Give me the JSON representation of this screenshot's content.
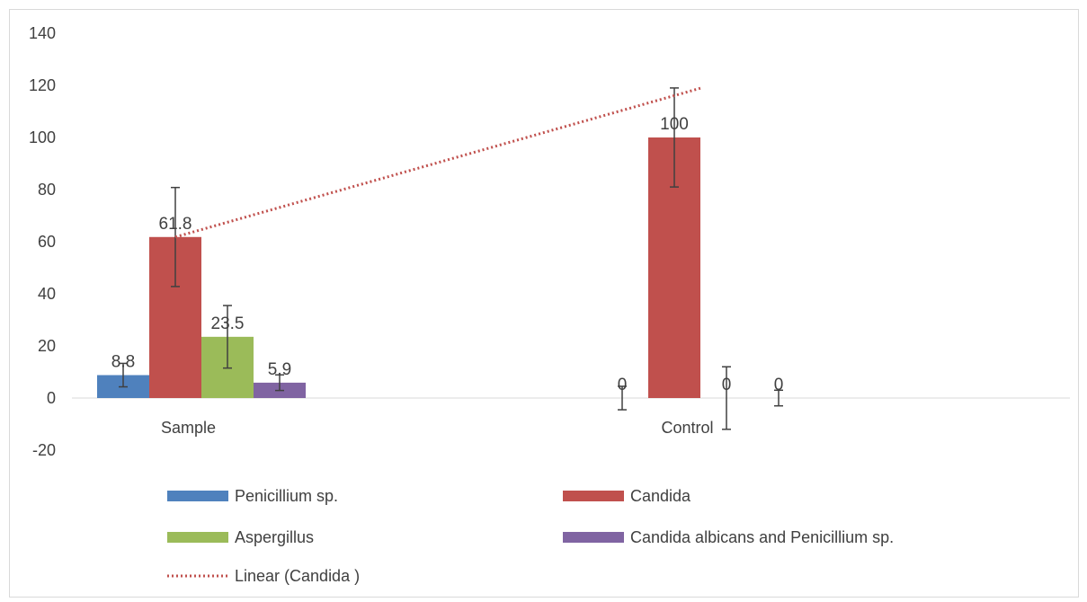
{
  "chart_data": {
    "type": "bar",
    "categories": [
      "Sample",
      "Control"
    ],
    "series": [
      {
        "name": "Penicillium sp.",
        "color": "#4f81bd",
        "values": [
          8.8,
          0
        ],
        "errors": [
          4.5,
          4.5
        ]
      },
      {
        "name": "Candida",
        "color": "#c0504d",
        "values": [
          61.8,
          100
        ],
        "errors": [
          19,
          19
        ]
      },
      {
        "name": "Aspergillus",
        "color": "#9bbb59",
        "values": [
          23.5,
          0
        ],
        "errors": [
          12,
          12
        ]
      },
      {
        "name": "Candida albicans  and Penicillium sp.",
        "color": "#8064a2",
        "values": [
          5.9,
          0
        ],
        "errors": [
          3,
          3
        ]
      }
    ],
    "data_labels": [
      [
        "8.8",
        "0"
      ],
      [
        "61.8",
        "100"
      ],
      [
        "23.5",
        "0"
      ],
      [
        "5.9",
        "0"
      ]
    ],
    "trendline": {
      "name": "Linear (Candida )",
      "series": "Candida",
      "type": "linear",
      "color": "#c0504d",
      "style": "dotted",
      "start_y": 61.8,
      "end_y": 119
    },
    "yticks": [
      140,
      120,
      100,
      80,
      60,
      40,
      20,
      0,
      -20
    ],
    "ylim": [
      -20,
      140
    ],
    "legend_position": "bottom",
    "grid": false
  }
}
